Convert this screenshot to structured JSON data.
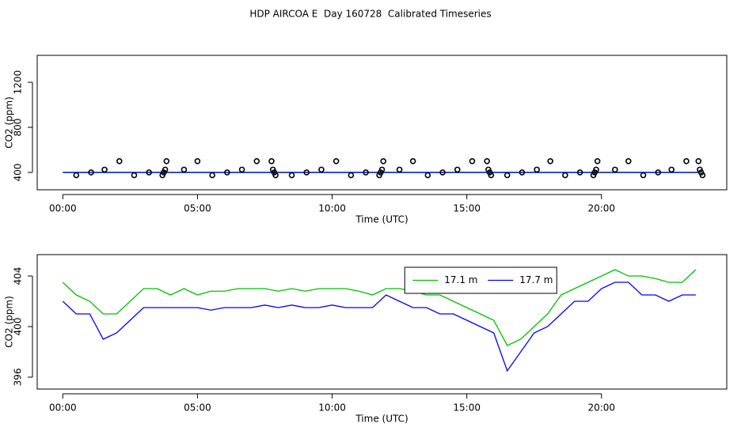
{
  "title": "HDP AIRCOA E  Day 160728  Calibrated Timeseries",
  "chart_data": [
    {
      "type": "scatter",
      "x_label": "Time (UTC)",
      "y_label": "CO2 (ppm)",
      "xlim": [
        -0.95,
        24.65
      ],
      "ylim": [
        246,
        1439
      ],
      "xticks": [
        {
          "value": 0,
          "label": "00:00"
        },
        {
          "value": 5,
          "label": "05:00"
        },
        {
          "value": 10,
          "label": "10:00"
        },
        {
          "value": 15,
          "label": "15:00"
        },
        {
          "value": 20,
          "label": "20:00"
        }
      ],
      "yticks": [
        400,
        800,
        1200
      ],
      "series": [
        {
          "color": "#00c000",
          "x": [
            0,
            23.6
          ],
          "values": [
            400,
            400
          ]
        },
        {
          "color": "#0000ff",
          "x": [
            0,
            23.6
          ],
          "values": [
            400,
            400
          ]
        }
      ],
      "points": {
        "color": "#000000",
        "x": [
          0.5,
          1.05,
          1.55,
          2.1,
          2.65,
          3.2,
          3.7,
          3.75,
          3.8,
          3.85,
          4.5,
          5.0,
          5.55,
          6.1,
          6.65,
          7.2,
          7.75,
          7.8,
          7.85,
          7.9,
          8.5,
          9.05,
          9.6,
          10.15,
          10.7,
          11.25,
          11.75,
          11.8,
          11.85,
          11.9,
          12.5,
          13.0,
          13.55,
          14.1,
          14.65,
          15.2,
          15.75,
          15.8,
          15.85,
          15.9,
          16.5,
          17.05,
          17.6,
          18.1,
          18.65,
          19.2,
          19.7,
          19.75,
          19.8,
          19.85,
          20.5,
          21.0,
          21.55,
          22.1,
          22.6,
          23.15,
          23.6,
          23.65,
          23.7,
          23.75
        ],
        "values": [
          375,
          400,
          425,
          500,
          375,
          400,
          375,
          400,
          425,
          500,
          425,
          500,
          375,
          400,
          425,
          500,
          500,
          425,
          400,
          375,
          375,
          400,
          425,
          500,
          375,
          400,
          375,
          400,
          425,
          500,
          425,
          500,
          375,
          400,
          425,
          500,
          500,
          425,
          400,
          375,
          375,
          400,
          425,
          500,
          375,
          400,
          375,
          400,
          425,
          500,
          425,
          500,
          375,
          400,
          425,
          500,
          500,
          425,
          400,
          375
        ]
      }
    },
    {
      "type": "line",
      "x_label": "Time (UTC)",
      "y_label": "CO2 (ppm)",
      "xlim": [
        -0.95,
        24.65
      ],
      "ylim": [
        395.06,
        405.69
      ],
      "xticks": [
        {
          "value": 0,
          "label": "00:00"
        },
        {
          "value": 5,
          "label": "05:00"
        },
        {
          "value": 10,
          "label": "10:00"
        },
        {
          "value": 15,
          "label": "15:00"
        },
        {
          "value": 20,
          "label": "20:00"
        }
      ],
      "yticks": [
        396,
        400,
        404
      ],
      "legend": "top",
      "x": [
        0,
        0.5,
        1,
        1.5,
        2,
        2.5,
        3,
        3.5,
        4,
        4.5,
        5,
        5.5,
        6,
        6.5,
        7,
        7.5,
        8,
        8.5,
        9,
        9.5,
        10,
        10.5,
        11,
        11.5,
        12,
        12.5,
        13,
        13.5,
        14,
        14.5,
        15,
        15.5,
        16,
        16.5,
        17,
        17.5,
        18,
        18.5,
        19,
        19.5,
        20,
        20.5,
        21,
        21.5,
        22,
        22.5,
        23,
        23.5
      ],
      "series": [
        {
          "name": "17.1 m",
          "color": "#00c000",
          "values": [
            403.5,
            402.5,
            402,
            401,
            401,
            402,
            403,
            403,
            402.5,
            403,
            402.5,
            402.8,
            402.8,
            403,
            403,
            403,
            402.8,
            403,
            402.8,
            403,
            403,
            403,
            402.8,
            402.5,
            403,
            403,
            402.8,
            402.5,
            402.5,
            402,
            401.5,
            401,
            400.5,
            398.5,
            399,
            400,
            401,
            402.5,
            403,
            403.5,
            404,
            404.5,
            404,
            404,
            403.8,
            403.5,
            403.5,
            404.5
          ]
        },
        {
          "name": "17.7 m",
          "color": "#0000ff",
          "values": [
            402,
            401,
            401,
            399,
            399.5,
            400.5,
            401.5,
            401.5,
            401.5,
            401.5,
            401.5,
            401.3,
            401.5,
            401.5,
            401.5,
            401.7,
            401.5,
            401.7,
            401.5,
            401.5,
            401.7,
            401.5,
            401.5,
            401.5,
            402.5,
            402,
            401.5,
            401.5,
            401,
            401,
            400.5,
            400,
            399.5,
            396.5,
            398,
            399.5,
            400,
            401,
            402,
            402,
            403,
            403.5,
            403.5,
            402.5,
            402.5,
            402,
            402.5,
            402.5
          ]
        }
      ]
    }
  ]
}
